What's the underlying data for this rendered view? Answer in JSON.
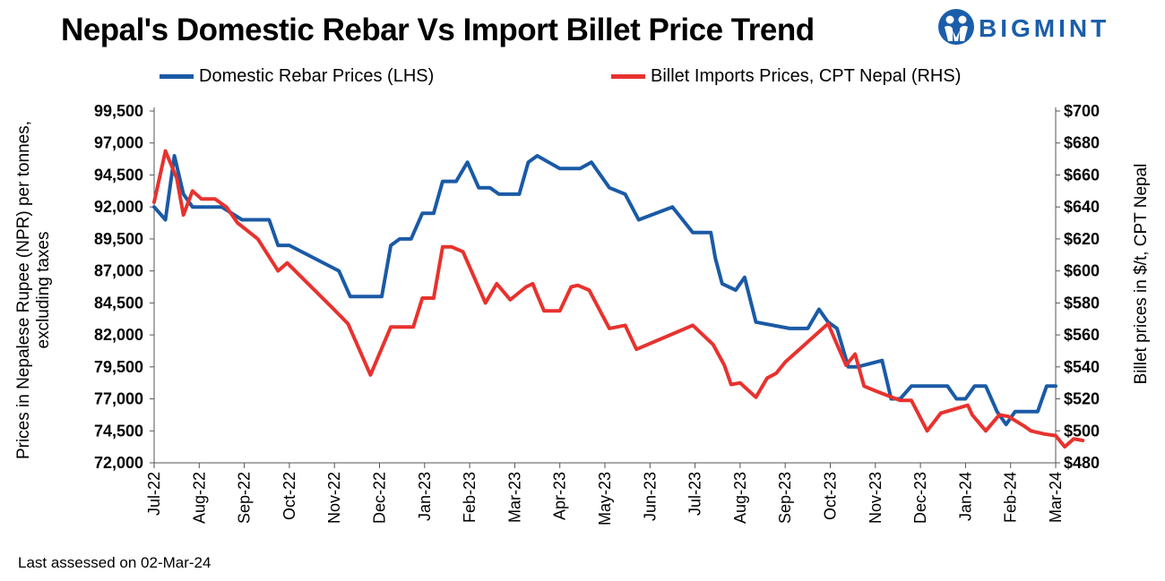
{
  "title": "Nepal's Domestic Rebar Vs Import Billet Price Trend",
  "brand": {
    "name": "BIGMINT",
    "color": "#1a5eab"
  },
  "footer_note": "Last assessed on 02-Mar-24",
  "chart_data": {
    "type": "line",
    "title": "Nepal's Domestic Rebar Vs Import Billet Price Trend",
    "ylabel_left": "Prices in Nepalese Rupee (NPR) per tonnes, excluding taxes",
    "ylabel_right": "Billet prices in $/t, CPT Nepal",
    "ylim_left": [
      72000,
      99500
    ],
    "ylim_right": [
      480,
      700
    ],
    "yticks_left": [
      "72,000",
      "74,500",
      "77,000",
      "79,500",
      "82,000",
      "84,500",
      "87,000",
      "89,500",
      "92,000",
      "94,500",
      "97,000",
      "99,500"
    ],
    "yticks_right": [
      "$480",
      "$500",
      "$520",
      "$540",
      "$560",
      "$580",
      "$600",
      "$620",
      "$640",
      "$660",
      "$680",
      "$700"
    ],
    "x_ticks": [
      "Jul-22",
      "Aug-22",
      "Sep-22",
      "Oct-22",
      "Nov-22",
      "Dec-22",
      "Jan-23",
      "Feb-23",
      "Mar-23",
      "Apr-23",
      "May-23",
      "Jun-23",
      "Jul-23",
      "Aug-23",
      "Sep-23",
      "Oct-23",
      "Nov-23",
      "Dec-23",
      "Jan-24",
      "Feb-24",
      "Mar-24"
    ],
    "legend_position": "top",
    "grid": false,
    "series": [
      {
        "name": "Domestic Rebar Prices (LHS)",
        "axis": "left",
        "color": "#1a5aa6",
        "points": [
          [
            0,
            92000
          ],
          [
            0.25,
            91000
          ],
          [
            0.45,
            96000
          ],
          [
            0.65,
            93000
          ],
          [
            0.85,
            92000
          ],
          [
            1.5,
            92000
          ],
          [
            1.95,
            91000
          ],
          [
            2.55,
            91000
          ],
          [
            2.75,
            89000
          ],
          [
            3.0,
            89000
          ],
          [
            4.1,
            87000
          ],
          [
            4.35,
            85000
          ],
          [
            5.05,
            85000
          ],
          [
            5.25,
            89000
          ],
          [
            5.45,
            89500
          ],
          [
            5.7,
            89500
          ],
          [
            5.95,
            91500
          ],
          [
            6.2,
            91500
          ],
          [
            6.4,
            94000
          ],
          [
            6.7,
            94000
          ],
          [
            6.95,
            95500
          ],
          [
            7.2,
            93500
          ],
          [
            7.45,
            93500
          ],
          [
            7.65,
            93000
          ],
          [
            8.1,
            93000
          ],
          [
            8.3,
            95500
          ],
          [
            8.5,
            96000
          ],
          [
            8.75,
            95500
          ],
          [
            9.0,
            95000
          ],
          [
            9.45,
            95000
          ],
          [
            9.7,
            95500
          ],
          [
            10.1,
            93500
          ],
          [
            10.45,
            93000
          ],
          [
            10.75,
            91000
          ],
          [
            11.5,
            92000
          ],
          [
            11.95,
            90000
          ],
          [
            12.35,
            90000
          ],
          [
            12.45,
            88000
          ],
          [
            12.6,
            86000
          ],
          [
            12.9,
            85500
          ],
          [
            13.1,
            86500
          ],
          [
            13.35,
            83000
          ],
          [
            14.1,
            82500
          ],
          [
            14.5,
            82500
          ],
          [
            14.75,
            84000
          ],
          [
            14.95,
            83000
          ],
          [
            15.15,
            82500
          ],
          [
            15.4,
            79500
          ],
          [
            15.6,
            79500
          ],
          [
            16.15,
            80000
          ],
          [
            16.35,
            77000
          ],
          [
            16.55,
            77000
          ],
          [
            16.8,
            78000
          ],
          [
            17.6,
            78000
          ],
          [
            17.8,
            77000
          ],
          [
            18.0,
            77000
          ],
          [
            18.2,
            78000
          ],
          [
            18.45,
            78000
          ],
          [
            18.7,
            76000
          ],
          [
            18.9,
            75000
          ],
          [
            19.1,
            76000
          ],
          [
            19.6,
            76000
          ],
          [
            19.8,
            78000
          ],
          [
            20.0,
            78000
          ]
        ]
      },
      {
        "name": "Billet Imports Prices, CPT Nepal (RHS)",
        "axis": "right",
        "color": "#e8322e",
        "points": [
          [
            0,
            643
          ],
          [
            0.25,
            675
          ],
          [
            0.5,
            658
          ],
          [
            0.65,
            635
          ],
          [
            0.85,
            650
          ],
          [
            1.05,
            645
          ],
          [
            1.35,
            645
          ],
          [
            1.6,
            640
          ],
          [
            1.85,
            630
          ],
          [
            2.3,
            620
          ],
          [
            2.75,
            600
          ],
          [
            2.95,
            605
          ],
          [
            3.95,
            577
          ],
          [
            4.3,
            567
          ],
          [
            4.8,
            535
          ],
          [
            5.25,
            565
          ],
          [
            5.75,
            565
          ],
          [
            5.95,
            583
          ],
          [
            6.2,
            583
          ],
          [
            6.4,
            615
          ],
          [
            6.6,
            615
          ],
          [
            6.85,
            612
          ],
          [
            7.35,
            580
          ],
          [
            7.6,
            592
          ],
          [
            7.9,
            582
          ],
          [
            8.25,
            590
          ],
          [
            8.4,
            592
          ],
          [
            8.5,
            585
          ],
          [
            8.65,
            575
          ],
          [
            9.0,
            575
          ],
          [
            9.25,
            590
          ],
          [
            9.4,
            591
          ],
          [
            9.65,
            588
          ],
          [
            10.1,
            564
          ],
          [
            10.45,
            566
          ],
          [
            10.7,
            551
          ],
          [
            11.95,
            566
          ],
          [
            12.4,
            554
          ],
          [
            12.65,
            541
          ],
          [
            12.8,
            529
          ],
          [
            13.0,
            530
          ],
          [
            13.35,
            521
          ],
          [
            13.6,
            533
          ],
          [
            13.8,
            536
          ],
          [
            14.0,
            543
          ],
          [
            14.95,
            567
          ],
          [
            15.35,
            541
          ],
          [
            15.55,
            548
          ],
          [
            15.75,
            528
          ],
          [
            16.0,
            525
          ],
          [
            16.55,
            519
          ],
          [
            16.8,
            519
          ],
          [
            17.15,
            500
          ],
          [
            17.45,
            511
          ],
          [
            18.05,
            516
          ],
          [
            18.15,
            510
          ],
          [
            18.45,
            500
          ],
          [
            18.75,
            510
          ],
          [
            18.95,
            509
          ],
          [
            19.3,
            503
          ],
          [
            19.45,
            500
          ],
          [
            19.75,
            498
          ],
          [
            20.0,
            497
          ],
          [
            20.2,
            490
          ],
          [
            20.4,
            495
          ],
          [
            20.6,
            494
          ]
        ]
      }
    ]
  }
}
